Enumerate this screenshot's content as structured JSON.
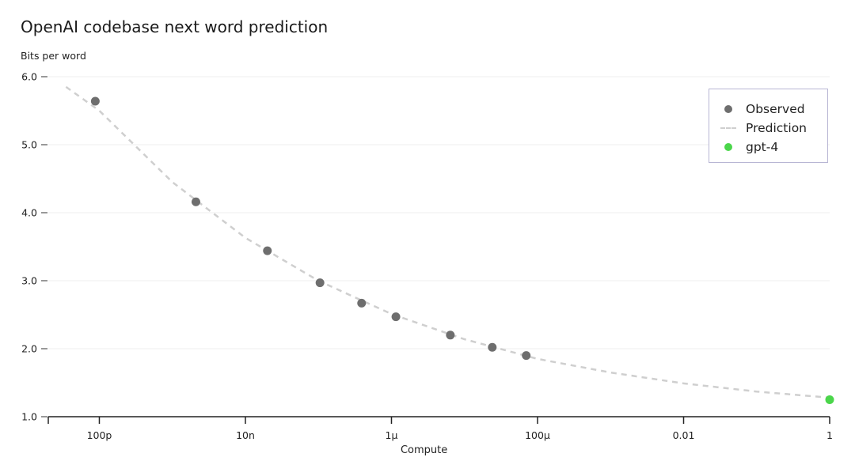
{
  "chart_data": {
    "type": "scatter",
    "title": "OpenAI codebase next word prediction",
    "ylabel": "Bits per word",
    "xlabel": "Compute",
    "xscale": "log",
    "xlim": [
      2e-11,
      1
    ],
    "ylim": [
      1.0,
      6.0
    ],
    "grid": "horizontal",
    "legend_placement": "top-right",
    "yticks": [
      {
        "value": 1.0,
        "label": "1.0"
      },
      {
        "value": 2.0,
        "label": "2.0"
      },
      {
        "value": 3.0,
        "label": "3.0"
      },
      {
        "value": 4.0,
        "label": "4.0"
      },
      {
        "value": 5.0,
        "label": "5.0"
      },
      {
        "value": 6.0,
        "label": "6.0"
      }
    ],
    "xticks": [
      {
        "value": 1e-10,
        "label": "100p"
      },
      {
        "value": 1e-08,
        "label": "10n"
      },
      {
        "value": 1e-06,
        "label": "1μ"
      },
      {
        "value": 0.0001,
        "label": "100μ"
      },
      {
        "value": 0.01,
        "label": "0.01"
      },
      {
        "value": 1,
        "label": "1"
      }
    ],
    "series": [
      {
        "name": "Observed",
        "kind": "scatter",
        "color": "#6e6e6e",
        "points": [
          {
            "x": 8.8e-11,
            "y": 5.64
          },
          {
            "x": 2.1e-09,
            "y": 4.16
          },
          {
            "x": 2e-08,
            "y": 3.44
          },
          {
            "x": 1.05e-07,
            "y": 2.97
          },
          {
            "x": 3.9e-07,
            "y": 2.67
          },
          {
            "x": 1.15e-06,
            "y": 2.47
          },
          {
            "x": 6.4e-06,
            "y": 2.2
          },
          {
            "x": 2.4e-05,
            "y": 2.02
          },
          {
            "x": 7e-05,
            "y": 1.9
          }
        ]
      },
      {
        "name": "Prediction",
        "kind": "line-dashed",
        "color": "#cfcfcf",
        "points": [
          {
            "x": 3.5e-11,
            "y": 5.85
          },
          {
            "x": 1e-10,
            "y": 5.5
          },
          {
            "x": 1e-09,
            "y": 4.45
          },
          {
            "x": 1e-08,
            "y": 3.63
          },
          {
            "x": 1e-07,
            "y": 3.0
          },
          {
            "x": 1e-06,
            "y": 2.51
          },
          {
            "x": 1e-05,
            "y": 2.14
          },
          {
            "x": 0.0001,
            "y": 1.85
          },
          {
            "x": 0.001,
            "y": 1.65
          },
          {
            "x": 0.01,
            "y": 1.49
          },
          {
            "x": 0.1,
            "y": 1.37
          },
          {
            "x": 1,
            "y": 1.28
          }
        ]
      },
      {
        "name": "gpt-4",
        "kind": "scatter",
        "color": "#4bd64b",
        "points": [
          {
            "x": 1,
            "y": 1.25
          }
        ]
      }
    ]
  }
}
